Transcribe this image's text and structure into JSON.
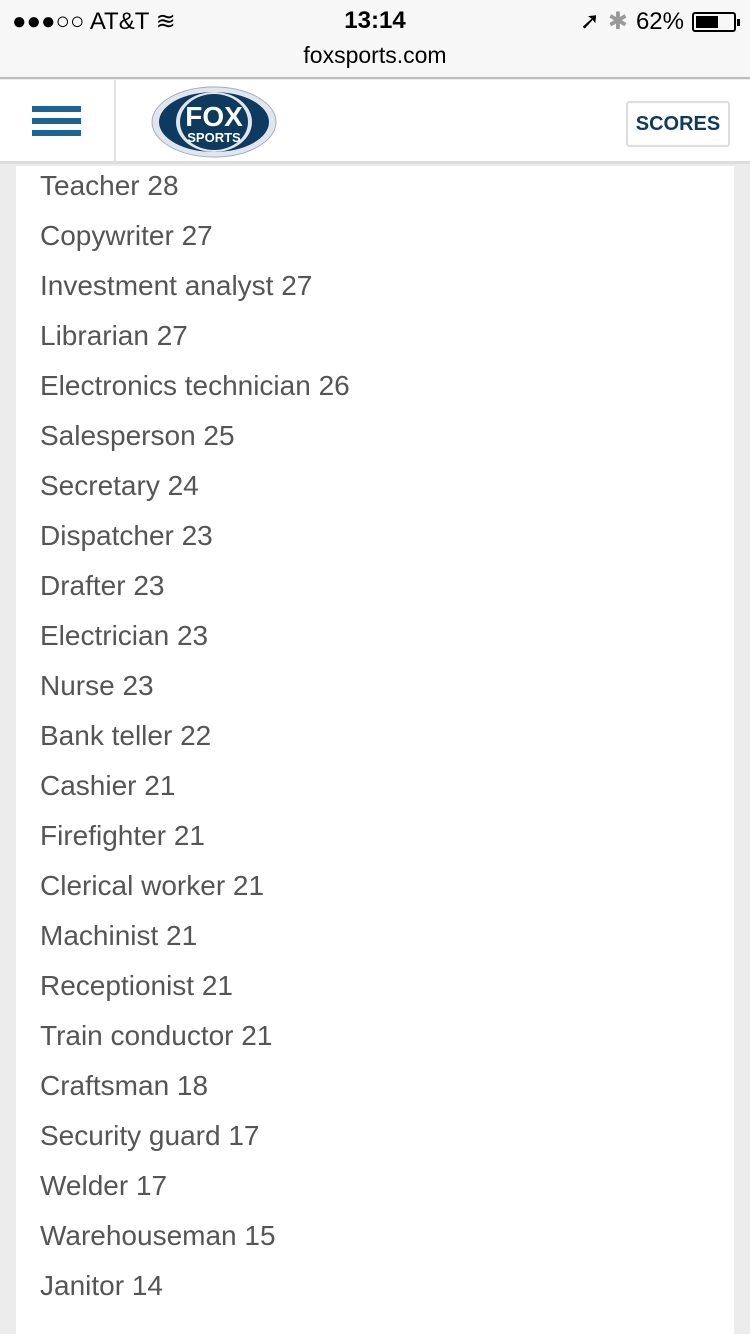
{
  "status_bar": {
    "carrier": "●●●○○ AT&T",
    "time": "13:14",
    "battery": "62%",
    "battery_level": 0.62
  },
  "browser": {
    "url": "foxsports.com"
  },
  "header": {
    "logo_text": "FOX SPORTS",
    "logo_top": "FOX",
    "logo_bottom": "SPORTS",
    "scores_label": "SCORES",
    "accent": "#1d6495",
    "brand": "#0f3a5f"
  },
  "items": [
    "Teacher 28",
    "Copywriter 27",
    "Investment analyst 27",
    "Librarian 27",
    "Electronics technician 26",
    "Salesperson 25",
    "Secretary 24",
    "Dispatcher 23",
    "Drafter 23",
    "Electrician 23",
    "Nurse 23",
    "Bank teller 22",
    "Cashier 21",
    "Firefighter 21",
    "Clerical worker 21",
    "Machinist 21",
    "Receptionist 21",
    "Train conductor 21",
    "Craftsman 18",
    "Security guard 17",
    "Welder 17",
    "Warehouseman 15",
    "Janitor 14"
  ]
}
